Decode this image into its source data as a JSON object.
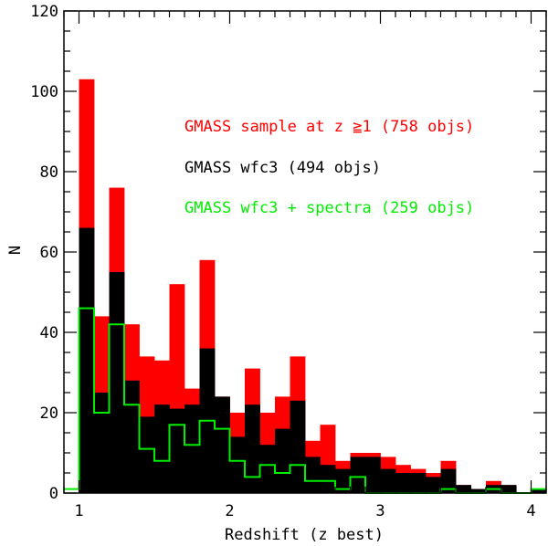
{
  "chart_data": {
    "type": "histogram",
    "xlabel": "Redshift (z best)",
    "ylabel": "N",
    "xlim": [
      0.9,
      4.1
    ],
    "ylim": [
      0,
      120
    ],
    "bin_width": 0.1,
    "x_ticks": [
      1,
      2,
      3,
      4
    ],
    "y_ticks": [
      0,
      20,
      40,
      60,
      80,
      100,
      120
    ],
    "legend_location": "upper-right",
    "series": [
      {
        "name": "GMASS sample at z ≧1 (758 objs)",
        "color": "#ff0000",
        "style": "filled",
        "bin_starts": [
          0.9,
          1.0,
          1.1,
          1.2,
          1.3,
          1.4,
          1.5,
          1.6,
          1.7,
          1.8,
          1.9,
          2.0,
          2.1,
          2.2,
          2.3,
          2.4,
          2.5,
          2.6,
          2.7,
          2.8,
          2.9,
          3.0,
          3.1,
          3.2,
          3.3,
          3.4,
          3.5,
          3.6,
          3.7,
          3.8,
          3.9,
          4.0
        ],
        "values": [
          0,
          103,
          44,
          76,
          42,
          34,
          33,
          52,
          26,
          58,
          24,
          20,
          31,
          20,
          24,
          34,
          13,
          17,
          8,
          10,
          10,
          9,
          7,
          6,
          5,
          8,
          2,
          1,
          3,
          2,
          0,
          1
        ]
      },
      {
        "name": "GMASS wfc3 (494 objs)",
        "color": "#000000",
        "style": "filled",
        "bin_starts": [
          0.9,
          1.0,
          1.1,
          1.2,
          1.3,
          1.4,
          1.5,
          1.6,
          1.7,
          1.8,
          1.9,
          2.0,
          2.1,
          2.2,
          2.3,
          2.4,
          2.5,
          2.6,
          2.7,
          2.8,
          2.9,
          3.0,
          3.1,
          3.2,
          3.3,
          3.4,
          3.5,
          3.6,
          3.7,
          3.8,
          3.9,
          4.0
        ],
        "values": [
          0,
          66,
          25,
          55,
          28,
          19,
          22,
          21,
          22,
          36,
          24,
          14,
          22,
          12,
          16,
          23,
          9,
          7,
          6,
          9,
          9,
          6,
          5,
          5,
          4,
          6,
          2,
          1,
          2,
          2,
          0,
          1
        ]
      },
      {
        "name": "GMASS wfc3 + spectra (259 objs)",
        "color": "#00ee00",
        "style": "step",
        "bin_starts": [
          0.9,
          1.0,
          1.1,
          1.2,
          1.3,
          1.4,
          1.5,
          1.6,
          1.7,
          1.8,
          1.9,
          2.0,
          2.1,
          2.2,
          2.3,
          2.4,
          2.5,
          2.6,
          2.7,
          2.8,
          2.9,
          3.0,
          3.1,
          3.2,
          3.3,
          3.4,
          3.5,
          3.6,
          3.7,
          3.8,
          3.9,
          4.0
        ],
        "values": [
          1,
          46,
          20,
          42,
          22,
          11,
          8,
          17,
          12,
          18,
          16,
          8,
          4,
          7,
          5,
          7,
          3,
          3,
          1,
          4,
          0,
          0,
          0,
          0,
          0,
          1,
          0,
          0,
          1,
          0,
          0,
          1
        ]
      }
    ]
  }
}
